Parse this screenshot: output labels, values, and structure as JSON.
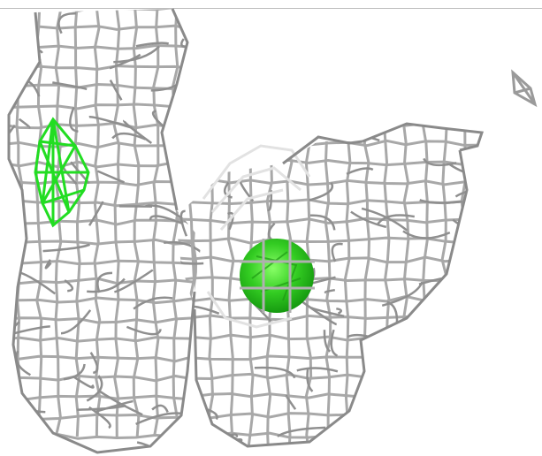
{
  "scene": {
    "background": "#ffffff",
    "mesh_color": "#9e9e9e",
    "mesh_highlight": "#d6d6d6",
    "faint_mesh_color": "#e4e4e4",
    "density_green": "#22cc22",
    "density_green_light": "#66ee55",
    "rule_color": "#bdbdbd"
  },
  "objects": [
    {
      "id": "left-lobe-mesh",
      "kind": "grey wireframe isosurface"
    },
    {
      "id": "right-lobe-mesh",
      "kind": "grey wireframe isosurface"
    },
    {
      "id": "green-blob-left",
      "kind": "green wireframe density"
    },
    {
      "id": "green-sphere-center",
      "kind": "green solid density"
    },
    {
      "id": "floating-fragment",
      "kind": "small grey wireframe fragment"
    }
  ]
}
